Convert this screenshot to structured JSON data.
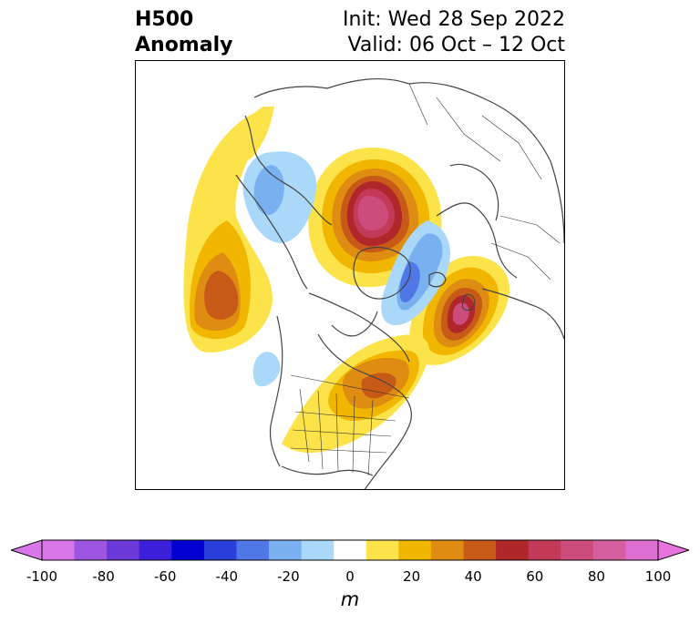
{
  "title": {
    "left_line1": "H500",
    "left_line2": "Anomaly",
    "init": "Init: Wed 28 Sep 2022",
    "valid": "Valid: 06 Oct – 12 Oct"
  },
  "colorbar": {
    "unit": "m",
    "tick_labels": [
      "-100",
      "-80",
      "-60",
      "-40",
      "-20",
      "0",
      "20",
      "40",
      "60",
      "80",
      "100"
    ],
    "bounds": [
      -100,
      -90,
      -80,
      -70,
      -60,
      -50,
      -40,
      -30,
      -20,
      -10,
      10,
      20,
      30,
      40,
      50,
      60,
      70,
      80,
      90,
      100
    ],
    "colors": [
      "#d977ea",
      "#9b55e0",
      "#6a37d8",
      "#3c20d9",
      "#0000d2",
      "#2a3fda",
      "#4f78e6",
      "#79b1f0",
      "#aad8f8",
      "#ffffff",
      "#fde34a",
      "#f1b600",
      "#df8d12",
      "#c85a18",
      "#b0262a",
      "#c23a58",
      "#cc4d7b",
      "#d65fa0",
      "#e06fd3"
    ],
    "extend_low_color": "#d977ea",
    "extend_high_color": "#e873dd"
  },
  "map": {
    "projection": "north-polar-stereographic",
    "features": [
      "coastlines",
      "country-borders",
      "us-state-borders"
    ],
    "anomaly_centers": [
      {
        "region": "north-central-siberia-arctic",
        "value_m": 85
      },
      {
        "region": "north-atlantic-greenland-east",
        "value_m": 70
      },
      {
        "region": "northeast-pacific",
        "value_m": 50
      },
      {
        "region": "eastern-north-america",
        "value_m": 40
      },
      {
        "region": "central-north-america",
        "value_m": 20
      },
      {
        "region": "kara-sea-norway",
        "value_m": -40
      },
      {
        "region": "central-greenland",
        "value_m": -30
      },
      {
        "region": "eastern-siberia",
        "value_m": -20
      },
      {
        "region": "gulf-of-alaska-coast",
        "value_m": -20
      }
    ]
  }
}
